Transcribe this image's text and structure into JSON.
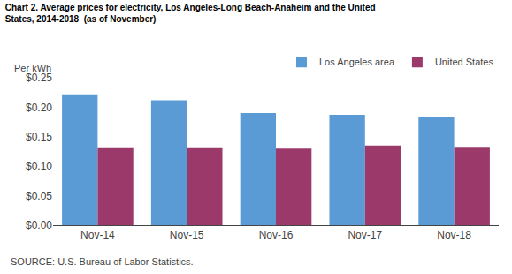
{
  "chart_data": {
    "type": "bar",
    "title": "Chart 2. Average prices for electricity, Los Angeles-Long Beach-Anaheim and the United\nStates, 2014-2018  (as of November)",
    "ylabel": "Per kWh",
    "annotations": [
      "SOURCE: U.S. Bureau of Labor Statistics."
    ],
    "categories": [
      "Nov-14",
      "Nov-15",
      "Nov-16",
      "Nov-17",
      "Nov-18"
    ],
    "series": [
      {
        "name": "Los Angeles area",
        "color": "#5B9BD5",
        "values": [
          0.222,
          0.212,
          0.19,
          0.187,
          0.184
        ]
      },
      {
        "name": "United States",
        "color": "#9B3A6A",
        "values": [
          0.132,
          0.132,
          0.13,
          0.135,
          0.133
        ]
      }
    ],
    "ylim": [
      0,
      0.25
    ],
    "yticks": [
      {
        "value": 0.0,
        "label": "$0.00"
      },
      {
        "value": 0.05,
        "label": "$0.05"
      },
      {
        "value": 0.1,
        "label": "$0.10"
      },
      {
        "value": 0.15,
        "label": "$0.15"
      },
      {
        "value": 0.2,
        "label": "$0.20"
      },
      {
        "value": 0.25,
        "label": "$0.25"
      }
    ],
    "grid": false,
    "legend": "upper right"
  }
}
